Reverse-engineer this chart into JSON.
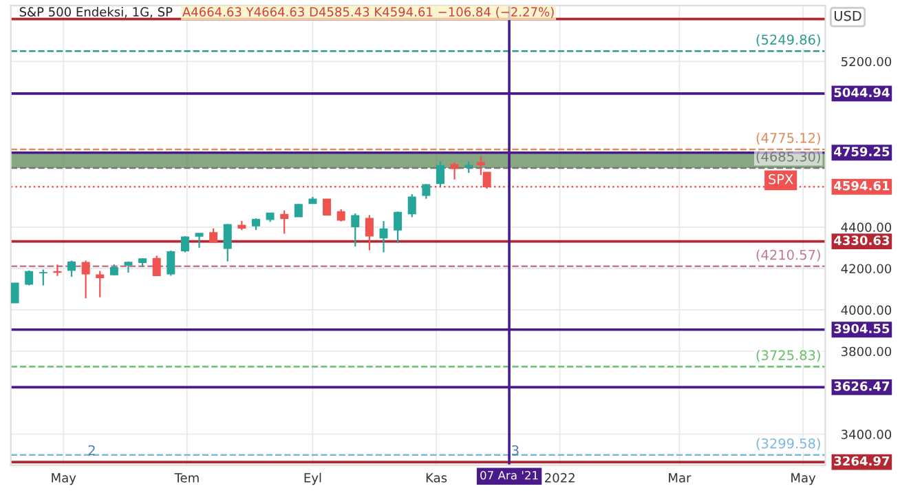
{
  "chart_data": {
    "type": "candlestick",
    "title": "S&P 500 Endeksi, 1G, SP",
    "subtitle": "A4664.63 Y4664.63 D4585.43 K4594.61 −106.84 (−2.27%)",
    "x": [
      "2021-04-07",
      "2021-04-14",
      "2021-04-21",
      "2021-04-28",
      "2021-05-05",
      "2021-05-12",
      "2021-05-19",
      "2021-05-26",
      "2021-06-02",
      "2021-06-09",
      "2021-06-16",
      "2021-06-23",
      "2021-06-30",
      "2021-07-07",
      "2021-07-14",
      "2021-07-21",
      "2021-07-28",
      "2021-08-04",
      "2021-08-11",
      "2021-08-18",
      "2021-08-25",
      "2021-09-01",
      "2021-09-08",
      "2021-09-15",
      "2021-09-22",
      "2021-09-29",
      "2021-10-06",
      "2021-10-13",
      "2021-10-20",
      "2021-10-27",
      "2021-11-03",
      "2021-11-10",
      "2021-11-17",
      "2021-11-23",
      "2021-11-26"
    ],
    "ohlc": [
      [
        4034,
        4129,
        4034,
        4129
      ],
      [
        4124,
        4191,
        4118,
        4185
      ],
      [
        4179,
        4195,
        4118,
        4180
      ],
      [
        4185,
        4219,
        4164,
        4181
      ],
      [
        4191,
        4238,
        4160,
        4232
      ],
      [
        4229,
        4238,
        4056,
        4174
      ],
      [
        4169,
        4188,
        4061,
        4156
      ],
      [
        4170,
        4220,
        4167,
        4204
      ],
      [
        4216,
        4234,
        4180,
        4230
      ],
      [
        4229,
        4249,
        4207,
        4247
      ],
      [
        4248,
        4262,
        4165,
        4166
      ],
      [
        4174,
        4286,
        4165,
        4281
      ],
      [
        4285,
        4356,
        4278,
        4352
      ],
      [
        4356,
        4372,
        4300,
        4370
      ],
      [
        4373,
        4394,
        4325,
        4327
      ],
      [
        4297,
        4415,
        4234,
        4412
      ],
      [
        4409,
        4430,
        4385,
        4395
      ],
      [
        4406,
        4442,
        4386,
        4437
      ],
      [
        4437,
        4468,
        4425,
        4468
      ],
      [
        4461,
        4480,
        4368,
        4442
      ],
      [
        4450,
        4513,
        4450,
        4509
      ],
      [
        4514,
        4546,
        4513,
        4535
      ],
      [
        4535,
        4535,
        4458,
        4458
      ],
      [
        4474,
        4486,
        4427,
        4433
      ],
      [
        4402,
        4466,
        4306,
        4455
      ],
      [
        4442,
        4458,
        4288,
        4357
      ],
      [
        4348,
        4429,
        4278,
        4391
      ],
      [
        4386,
        4475,
        4323,
        4471
      ],
      [
        4464,
        4559,
        4448,
        4545
      ],
      [
        4553,
        4608,
        4537,
        4605
      ],
      [
        4610,
        4718,
        4596,
        4697
      ],
      [
        4702,
        4714,
        4630,
        4683
      ],
      [
        4689,
        4718,
        4662,
        4698
      ],
      [
        4712,
        4743,
        4652,
        4701
      ],
      [
        4664.63,
        4664.63,
        4585.43,
        4594.61
      ]
    ],
    "colors": [
      "#26a69a",
      "#26a69a",
      "#26a69a",
      "#ef5350",
      "#26a69a",
      "#ef5350",
      "#ef5350",
      "#26a69a",
      "#26a69a",
      "#26a69a",
      "#ef5350",
      "#26a69a",
      "#26a69a",
      "#26a69a",
      "#ef5350",
      "#26a69a",
      "#ef5350",
      "#26a69a",
      "#26a69a",
      "#ef5350",
      "#26a69a",
      "#26a69a",
      "#ef5350",
      "#ef5350",
      "#26a69a",
      "#ef5350",
      "#26a69a",
      "#26a69a",
      "#26a69a",
      "#26a69a",
      "#26a69a",
      "#ef5350",
      "#26a69a",
      "#ef5350",
      "#ef5350"
    ],
    "xlim": [
      "2021-04-05",
      "2022-05-12"
    ],
    "xticks": [
      {
        "value": "2021-05-01",
        "label": "May"
      },
      {
        "value": "2021-07-01",
        "label": "Tem"
      },
      {
        "value": "2021-09-01",
        "label": "Eyl"
      },
      {
        "value": "2021-11-01",
        "label": "Kas"
      },
      {
        "value": "2022-01-01",
        "label": "2022"
      },
      {
        "value": "2022-03-01",
        "label": "Mar"
      },
      {
        "value": "2022-05-01",
        "label": "May"
      }
    ],
    "ylim": [
      3250,
      5470
    ],
    "yticks": [
      {
        "value": 3400,
        "label": "3400.00"
      },
      {
        "value": 3800,
        "label": "3800.00"
      },
      {
        "value": 4000,
        "label": "4000.00"
      },
      {
        "value": 4200,
        "label": "4200.00"
      },
      {
        "value": 4400,
        "label": "4400.00"
      },
      {
        "value": 5200,
        "label": "5200.00"
      }
    ],
    "grid": true,
    "bands": [
      {
        "axis": "y",
        "from": 4685.3,
        "to": 4759.25,
        "color": "#5f8a5a"
      }
    ],
    "ref_lines": [
      {
        "axis": "y",
        "value": 5405,
        "color": "#b22833",
        "line_style": "solid"
      },
      {
        "axis": "y",
        "value": 5249.86,
        "label": "(5249.86)",
        "color": "#2a9d8f",
        "line_style": "dashed"
      },
      {
        "axis": "y",
        "value": 5044.94,
        "label": "5044.94",
        "color": "#4a1a8a",
        "line_style": "solid"
      },
      {
        "axis": "y",
        "value": 4775.12,
        "label": "(4775.12)",
        "color": "#e08a5a",
        "line_style": "dashed"
      },
      {
        "axis": "y",
        "value": 4759.25,
        "label": "4759.25",
        "color": "#4a1a8a",
        "line_style": "solid"
      },
      {
        "axis": "y",
        "value": 4685.3,
        "label": "(4685.30)",
        "color": "#777777",
        "line_style": "dashed"
      },
      {
        "axis": "y",
        "value": 4594.61,
        "label": "4594.61",
        "color": "#ef5350",
        "line_style": "dotted"
      },
      {
        "axis": "y",
        "value": 4330.63,
        "label": "4330.63",
        "color": "#b22833",
        "line_style": "solid"
      },
      {
        "axis": "y",
        "value": 4210.57,
        "label": "(4210.57)",
        "color": "#c27a8a",
        "line_style": "dashed"
      },
      {
        "axis": "y",
        "value": 3904.55,
        "label": "3904.55",
        "color": "#4a1a8a",
        "line_style": "solid"
      },
      {
        "axis": "y",
        "value": 3725.83,
        "label": "(3725.83)",
        "color": "#6abf69",
        "line_style": "dashed"
      },
      {
        "axis": "y",
        "value": 3626.47,
        "label": "3626.47",
        "color": "#4a1a8a",
        "line_style": "solid"
      },
      {
        "axis": "y",
        "value": 3299.58,
        "label": "(3299.58)",
        "color": "#7ab8e0",
        "line_style": "dashed"
      },
      {
        "axis": "y",
        "value": 3264.97,
        "label": "3264.97",
        "color": "#b22833",
        "line_style": "solid"
      },
      {
        "axis": "x",
        "value": "2021-12-07",
        "label": "07 Ara '21",
        "color": "#4a1a8a",
        "line_style": "solid"
      }
    ],
    "annotations": [
      "USD",
      {
        "text": "SPX",
        "x": "2022-04-20",
        "y": 4594.61
      },
      {
        "text": "2",
        "x": "2021-05-15",
        "y": 3285
      },
      {
        "text": "3",
        "x": "2021-12-10",
        "y": 3285
      }
    ]
  }
}
